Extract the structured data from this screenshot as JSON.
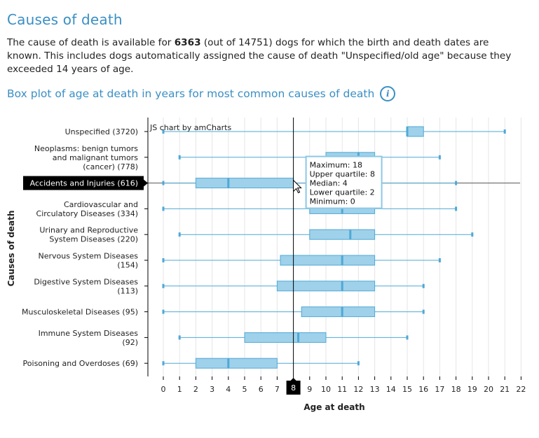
{
  "page": {
    "title": "Causes of death",
    "intro_part1": "The cause of death is available for ",
    "intro_bold": "6363",
    "intro_part2": " (out of 14751) dogs for which the birth and death dates are known. This includes dogs automatically assigned the cause of death \"Unspecified/old age\" because they exceeded 14 years of age.",
    "chart_subtitle": "Box plot of age at death in years for most common causes of death",
    "info_icon_glyph": "i"
  },
  "chart_data": {
    "type": "box",
    "credit": "JS chart by amCharts",
    "xlabel": "Age at death",
    "ylabel": "Causes of death",
    "xlim": [
      -1,
      22
    ],
    "xticks": [
      0,
      1,
      2,
      3,
      4,
      5,
      6,
      7,
      8,
      9,
      10,
      11,
      12,
      13,
      14,
      15,
      16,
      17,
      18,
      19,
      20,
      21,
      22
    ],
    "grid": true,
    "colors": {
      "box_fill": "#9fd1ea",
      "box_stroke": "#4fa9d6",
      "grid": "#e6e6e6",
      "cursor": "#000000"
    },
    "categories": [
      {
        "label": [
          "Unspecified (3720)"
        ],
        "min": 0,
        "q1": 15,
        "median": 15,
        "q3": 16,
        "max": 21
      },
      {
        "label": [
          "Neoplasms: benign tumors",
          "and malignant tumors",
          "(cancer) (778)"
        ],
        "min": 1,
        "q1": 10,
        "median": 12,
        "q3": 13,
        "max": 17
      },
      {
        "label": [
          "Accidents and Injuries (616)"
        ],
        "min": 0,
        "q1": 2,
        "median": 4,
        "q3": 8,
        "max": 18,
        "highlighted": true
      },
      {
        "label": [
          "Cardiovascular and",
          "Circulatory Diseases (334)"
        ],
        "min": 0,
        "q1": 9,
        "median": 11,
        "q3": 13,
        "max": 18
      },
      {
        "label": [
          "Urinary and Reproductive",
          "System Diseases (220)"
        ],
        "min": 1,
        "q1": 9,
        "median": 11.5,
        "q3": 13,
        "max": 19
      },
      {
        "label": [
          "Nervous System Diseases",
          "(154)"
        ],
        "min": 0,
        "q1": 7.2,
        "median": 11,
        "q3": 13,
        "max": 17
      },
      {
        "label": [
          "Digestive System Diseases",
          "(113)"
        ],
        "min": 0,
        "q1": 7,
        "median": 11,
        "q3": 13,
        "max": 16
      },
      {
        "label": [
          "Musculoskeletal Diseases (95)"
        ],
        "min": 0,
        "q1": 8.5,
        "median": 11,
        "q3": 13,
        "max": 16
      },
      {
        "label": [
          "Immune System Diseases",
          "(92)"
        ],
        "min": 1,
        "q1": 5,
        "median": 8.3,
        "q3": 10,
        "max": 15
      },
      {
        "label": [
          "Poisoning and Overdoses (69)"
        ],
        "min": 0,
        "q1": 2,
        "median": 4,
        "q3": 7,
        "max": 12
      }
    ],
    "cursor": {
      "x": 8,
      "label": "8"
    },
    "tooltip": {
      "lines": [
        "Maximum: 18",
        "Upper quartile: 8",
        "Median: 4",
        "Lower quartile: 2",
        "Minimum: 0"
      ]
    }
  }
}
